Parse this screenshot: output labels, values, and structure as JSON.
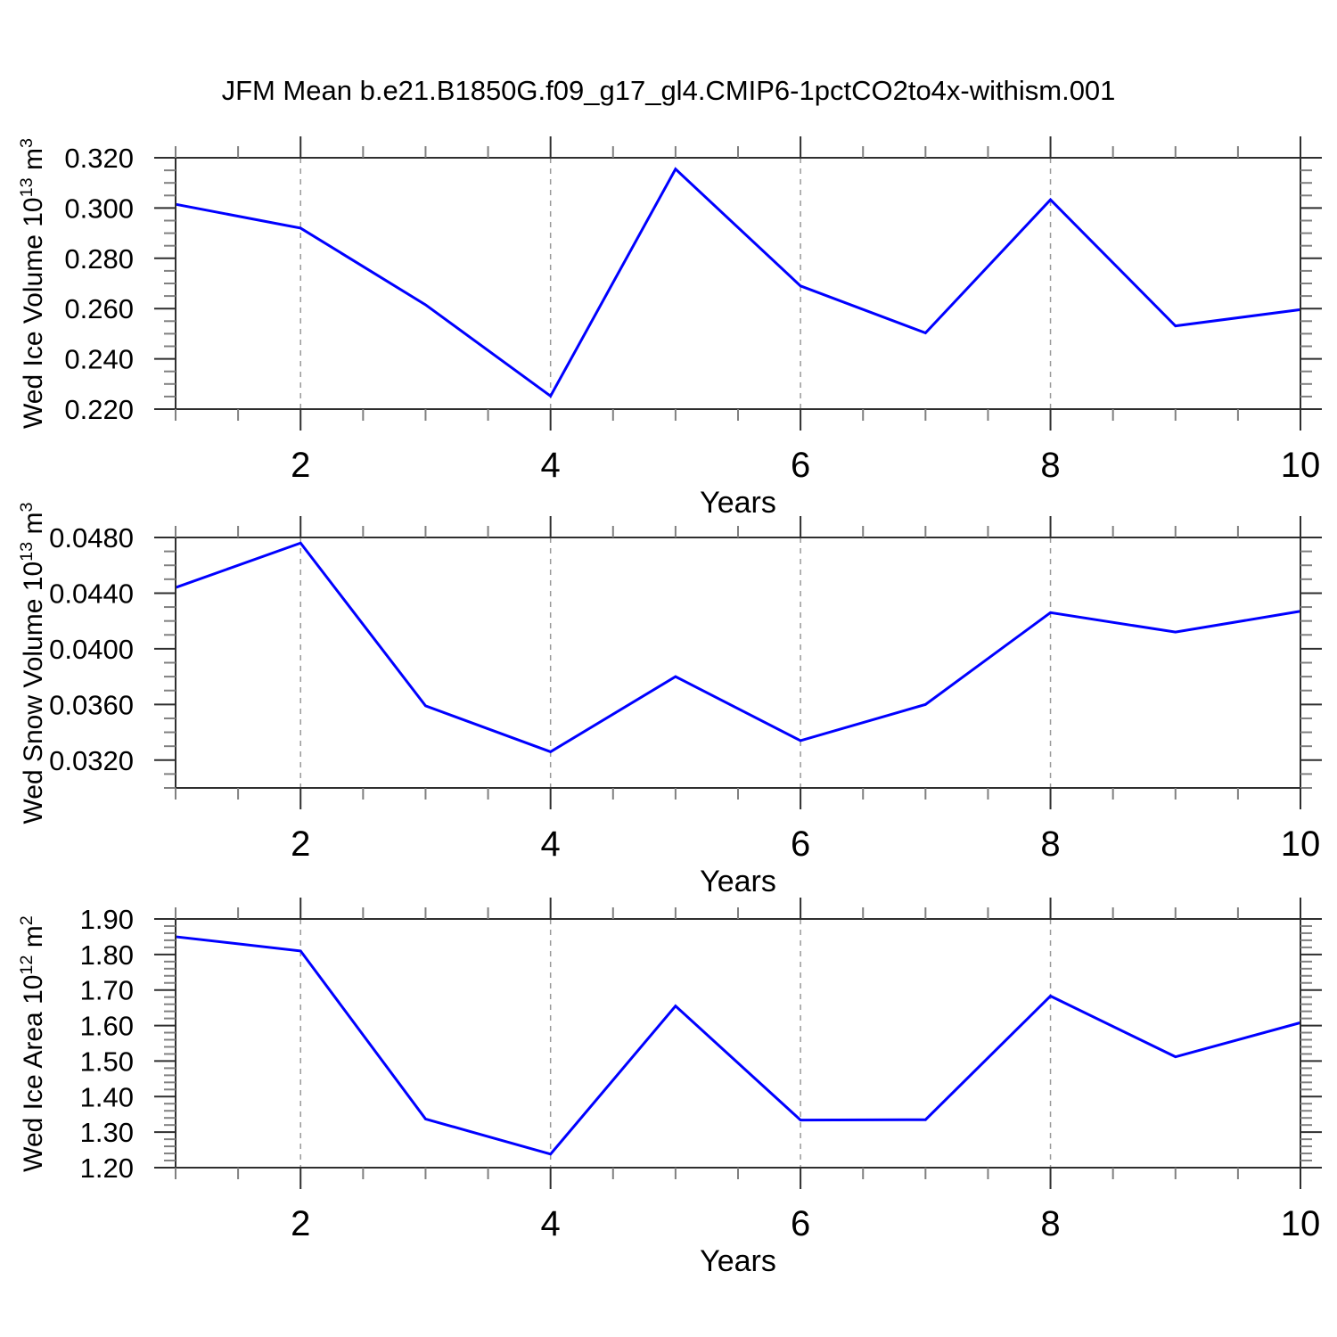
{
  "title": "JFM Mean b.e21.B1850G.f09_g17_gl4.CMIP6-1pctCO2to4x-withism.001",
  "style": {
    "line_color": "#0000ff",
    "frame_color": "#2e2e2e",
    "major_tick_color": "#2e2e2e",
    "minor_tick_color": "#808080",
    "grid_color": "#999999",
    "text_color": "#000000",
    "background": "#ffffff"
  },
  "x_axis": {
    "label": "Years",
    "range": [
      1,
      10
    ],
    "major_ticks": [
      2,
      4,
      6,
      8,
      10
    ],
    "tick_labels": [
      "2",
      "4",
      "6",
      "8",
      "10"
    ],
    "minor_step": 0.5,
    "gridlines": [
      2,
      4,
      6,
      8
    ]
  },
  "chart_data": [
    {
      "type": "line",
      "ylabel": "Wed Ice Volume 10^13 m^3",
      "ylabel_parts": {
        "text": "Wed Ice Volume 10",
        "sup1": "13",
        "mid": " m",
        "sup2": "3"
      },
      "xlabel": "Years",
      "x": [
        1,
        2,
        3,
        4,
        5,
        6,
        7,
        8,
        9,
        10
      ],
      "values": [
        0.3015,
        0.292,
        0.2615,
        0.2252,
        0.3155,
        0.269,
        0.2503,
        0.3033,
        0.2531,
        0.2596
      ],
      "ylim": [
        0.22,
        0.32
      ],
      "ytick_values": [
        0.32,
        0.3,
        0.28,
        0.26,
        0.24,
        0.22
      ],
      "ytick_labels": [
        "0.320",
        "0.300",
        "0.280",
        "0.260",
        "0.240",
        "0.220"
      ],
      "minor_step": 0.005,
      "grid": "vertical-dashed",
      "legend": "none"
    },
    {
      "type": "line",
      "ylabel": "Wed Snow Volume 10^13 m^3",
      "ylabel_parts": {
        "text": "Wed Snow Volume 10",
        "sup1": "13",
        "mid": " m",
        "sup2": "3"
      },
      "xlabel": "Years",
      "x": [
        1,
        2,
        3,
        4,
        5,
        6,
        7,
        8,
        9,
        10
      ],
      "values": [
        0.0444,
        0.0476,
        0.0359,
        0.0326,
        0.038,
        0.0334,
        0.036,
        0.0426,
        0.0412,
        0.0427
      ],
      "ylim": [
        0.03,
        0.048
      ],
      "ytick_values": [
        0.048,
        0.044,
        0.04,
        0.036,
        0.032
      ],
      "ytick_labels": [
        "0.0480",
        "0.0440",
        "0.0400",
        "0.0360",
        "0.0320"
      ],
      "minor_step": 0.001,
      "grid": "vertical-dashed",
      "legend": "none"
    },
    {
      "type": "line",
      "ylabel": "Wed Ice Area 10^12 m^2",
      "ylabel_parts": {
        "text": "Wed Ice Area 10",
        "sup1": "12",
        "mid": " m",
        "sup2": "2"
      },
      "xlabel": "Years",
      "x": [
        1,
        2,
        3,
        4,
        5,
        6,
        7,
        8,
        9,
        10
      ],
      "values": [
        1.85,
        1.81,
        1.337,
        1.238,
        1.655,
        1.334,
        1.335,
        1.683,
        1.512,
        1.608
      ],
      "ylim": [
        1.2,
        1.9
      ],
      "ytick_values": [
        1.9,
        1.8,
        1.7,
        1.6,
        1.5,
        1.4,
        1.3,
        1.2
      ],
      "ytick_labels": [
        "1.90",
        "1.80",
        "1.70",
        "1.60",
        "1.50",
        "1.40",
        "1.30",
        "1.20"
      ],
      "minor_step": 0.02,
      "grid": "vertical-dashed",
      "legend": "none"
    }
  ]
}
